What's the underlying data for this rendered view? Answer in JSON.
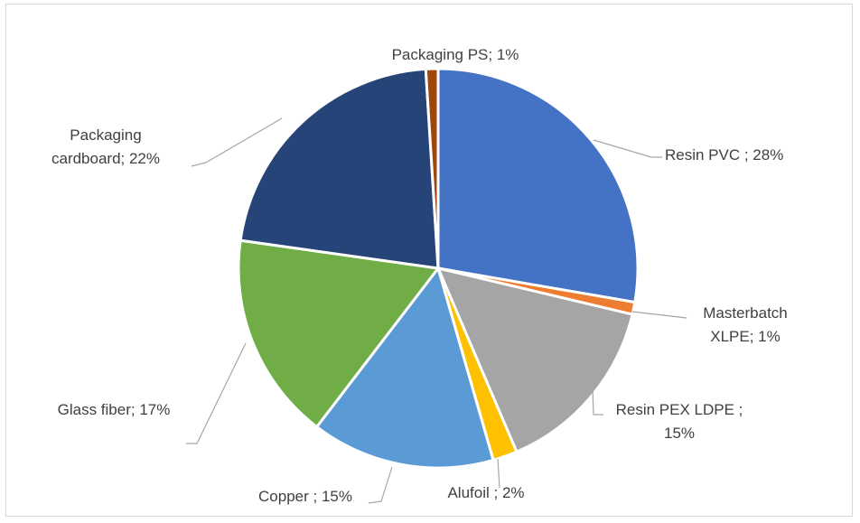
{
  "chart_data": {
    "type": "pie",
    "title": "",
    "slices": [
      {
        "name": "Resin PVC",
        "value": 28,
        "color": "#4472C4",
        "label_lines": [
          "Resin PVC ; 28%"
        ]
      },
      {
        "name": "Masterbatch XLPE",
        "value": 1,
        "color": "#ED7D31",
        "label_lines": [
          "Masterbatch",
          "XLPE; 1%"
        ]
      },
      {
        "name": "Resin PEX LDPE",
        "value": 15,
        "color": "#A5A5A5",
        "label_lines": [
          "Resin PEX LDPE ;",
          "15%"
        ]
      },
      {
        "name": "Alufoil",
        "value": 2,
        "color": "#FFC000",
        "label_lines": [
          "Alufoil ; 2%"
        ]
      },
      {
        "name": "Copper",
        "value": 15,
        "color": "#5B9BD5",
        "label_lines": [
          "Copper ; 15%"
        ]
      },
      {
        "name": "Glass fiber",
        "value": 17,
        "color": "#70AD47",
        "label_lines": [
          "Glass fiber; 17%"
        ]
      },
      {
        "name": "Packaging cardboard",
        "value": 22,
        "color": "#264478",
        "label_lines": [
          "Packaging",
          "cardboard; 22%"
        ]
      },
      {
        "name": "Packaging PS",
        "value": 1,
        "color": "#9E480E",
        "label_lines": [
          "Packaging PS; 1%"
        ]
      }
    ]
  }
}
